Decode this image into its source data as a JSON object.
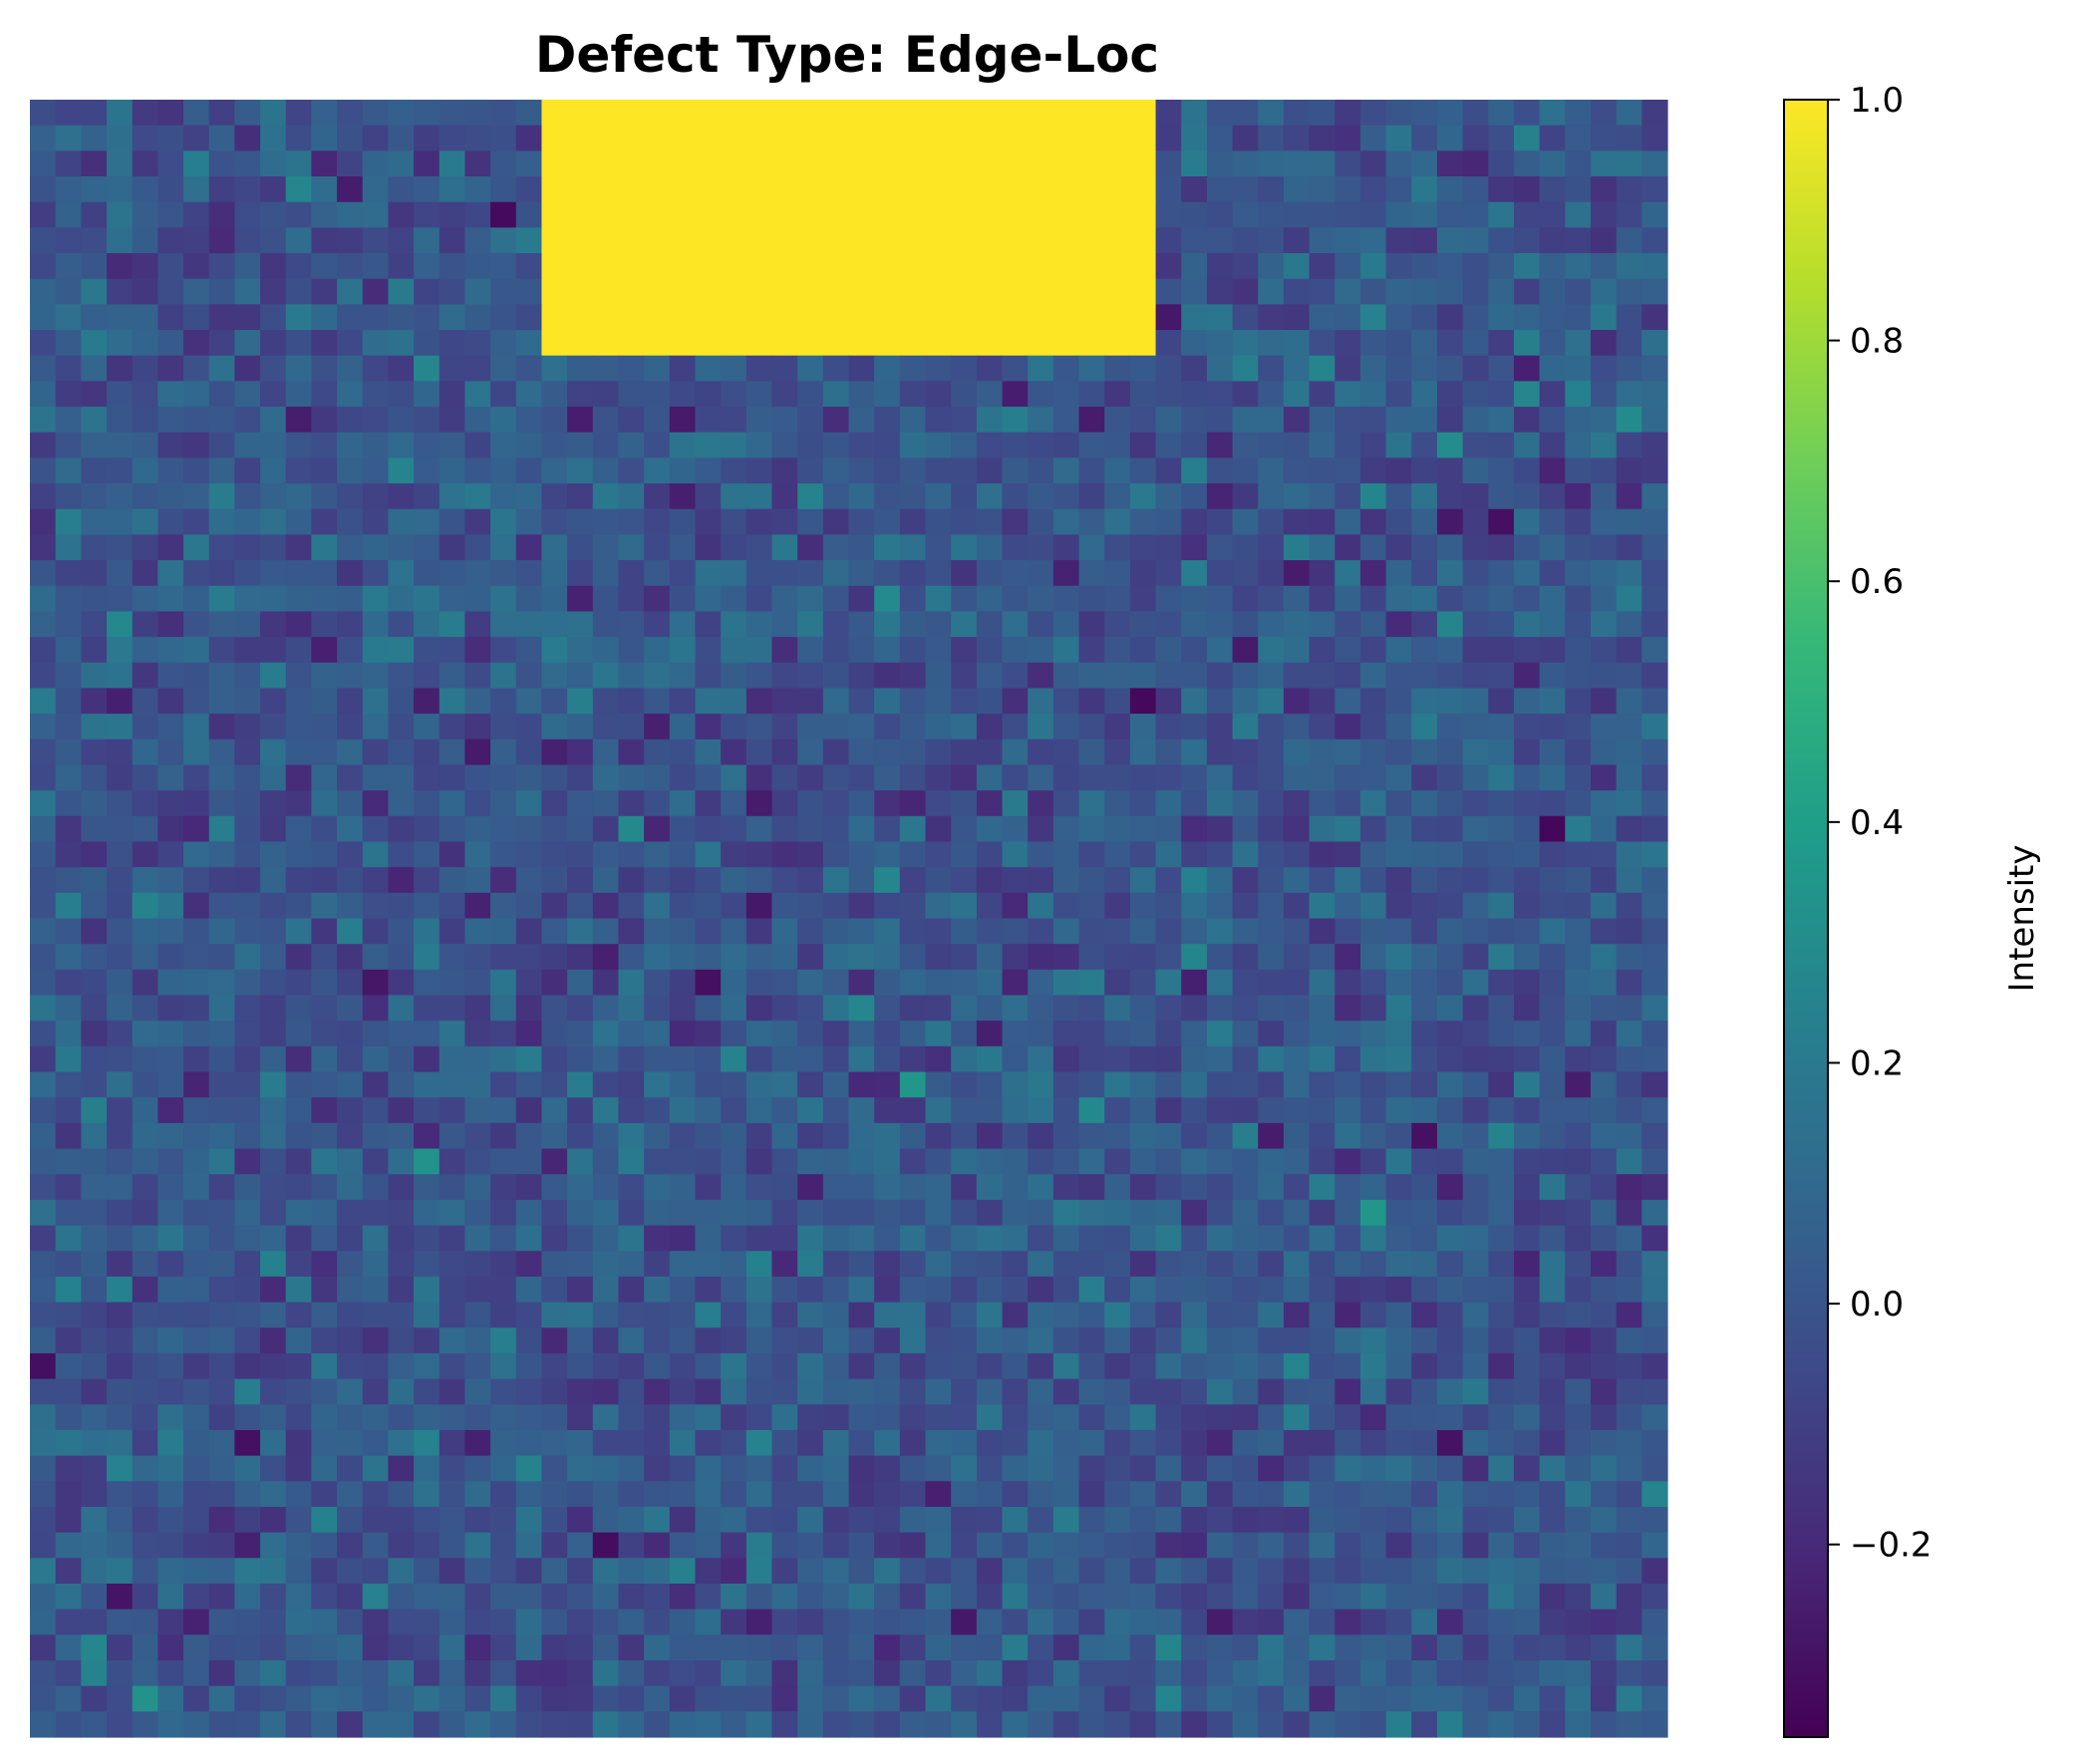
{
  "chart_data": {
    "type": "heatmap",
    "title": "Defect Type: Edge-Loc",
    "xlabel": "",
    "ylabel": "",
    "grid": false,
    "rows": 64,
    "cols": 64,
    "background_noise": {
      "mean": 0.0,
      "std": 0.1
    },
    "defect_region": {
      "row_start": 0,
      "row_end": 10,
      "col_start": 20,
      "col_end": 44,
      "value": 1.0
    },
    "colorbar": {
      "label": "Intensity",
      "colormap": "viridis",
      "vmin": -0.36,
      "vmax": 1.0,
      "ticks": [
        -0.2,
        0.0,
        0.2,
        0.4,
        0.6,
        0.8,
        1.0
      ],
      "tick_labels": [
        "−0.2",
        "0.0",
        "0.2",
        "0.4",
        "0.6",
        "0.8",
        "1.0"
      ]
    }
  }
}
